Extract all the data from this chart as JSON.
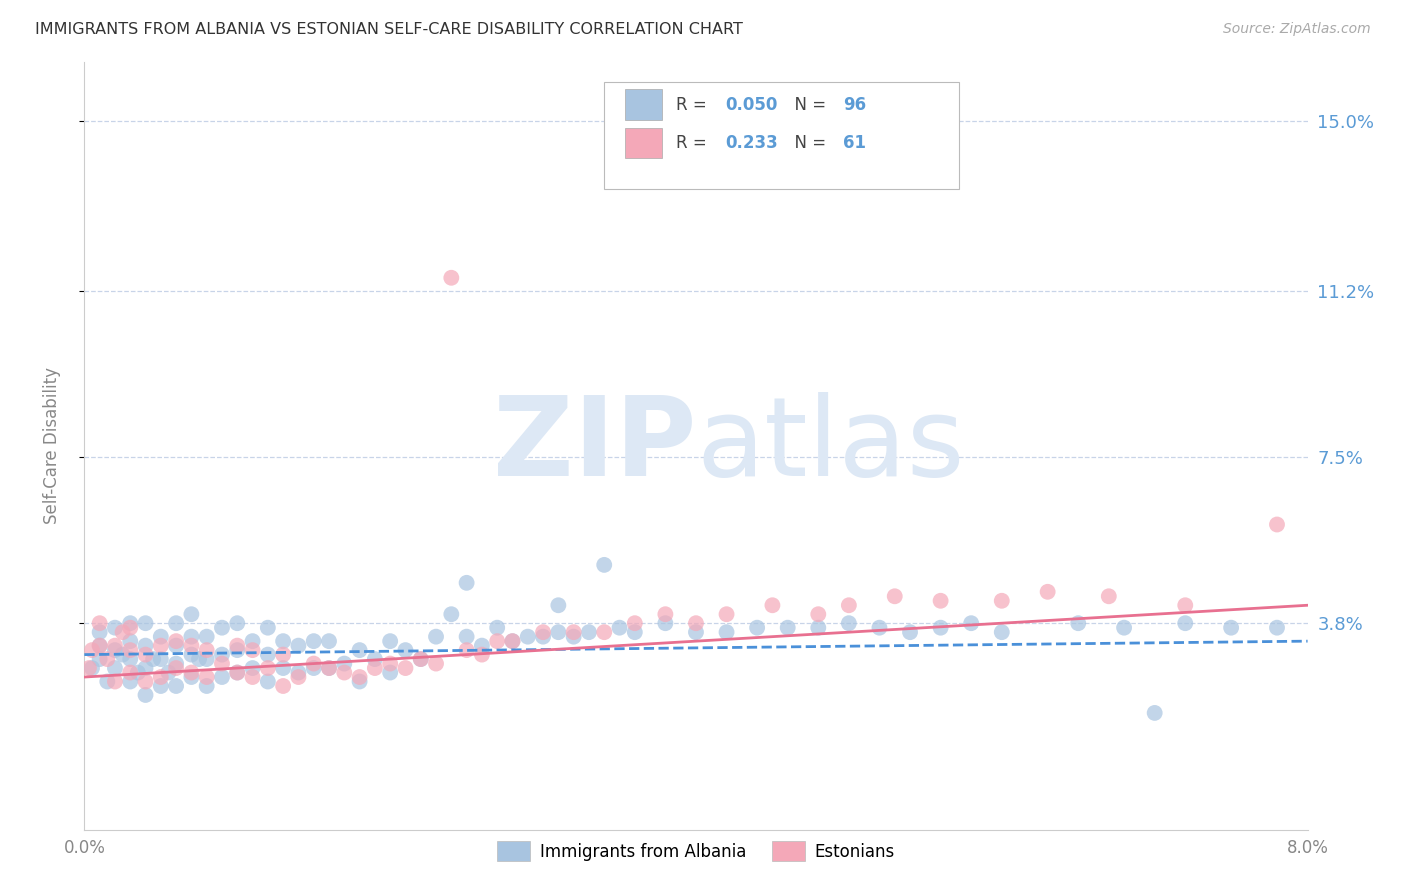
{
  "title": "IMMIGRANTS FROM ALBANIA VS ESTONIAN SELF-CARE DISABILITY CORRELATION CHART",
  "source": "Source: ZipAtlas.com",
  "ylabel": "Self-Care Disability",
  "y_tick_labels": [
    "3.8%",
    "7.5%",
    "11.2%",
    "15.0%"
  ],
  "y_tick_values": [
    0.038,
    0.075,
    0.112,
    0.15
  ],
  "xlim": [
    0.0,
    0.08
  ],
  "ylim": [
    -0.008,
    0.163
  ],
  "legend1_label": "Immigrants from Albania",
  "legend2_label": "Estonians",
  "scatter1_color": "#a8c4e0",
  "scatter2_color": "#f4a8b8",
  "line1_color": "#4a90d9",
  "line2_color": "#e87090",
  "watermark": "ZIPatlas",
  "R1": 0.05,
  "N1": 96,
  "R2": 0.233,
  "N2": 61,
  "scatter1_x": [
    0.0005,
    0.001,
    0.001,
    0.001,
    0.0015,
    0.002,
    0.002,
    0.002,
    0.0025,
    0.003,
    0.003,
    0.003,
    0.003,
    0.0035,
    0.004,
    0.004,
    0.004,
    0.004,
    0.0045,
    0.005,
    0.005,
    0.005,
    0.0055,
    0.006,
    0.006,
    0.006,
    0.006,
    0.007,
    0.007,
    0.007,
    0.007,
    0.0075,
    0.008,
    0.008,
    0.008,
    0.009,
    0.009,
    0.009,
    0.01,
    0.01,
    0.01,
    0.011,
    0.011,
    0.012,
    0.012,
    0.012,
    0.013,
    0.013,
    0.014,
    0.014,
    0.015,
    0.015,
    0.016,
    0.016,
    0.017,
    0.018,
    0.018,
    0.019,
    0.02,
    0.02,
    0.021,
    0.022,
    0.023,
    0.024,
    0.025,
    0.025,
    0.026,
    0.027,
    0.028,
    0.029,
    0.03,
    0.031,
    0.031,
    0.032,
    0.033,
    0.034,
    0.035,
    0.036,
    0.038,
    0.04,
    0.042,
    0.044,
    0.046,
    0.048,
    0.05,
    0.052,
    0.054,
    0.056,
    0.058,
    0.06,
    0.065,
    0.068,
    0.07,
    0.072,
    0.075,
    0.078
  ],
  "scatter1_y": [
    0.028,
    0.03,
    0.033,
    0.036,
    0.025,
    0.028,
    0.032,
    0.037,
    0.031,
    0.025,
    0.03,
    0.034,
    0.038,
    0.027,
    0.022,
    0.028,
    0.033,
    0.038,
    0.03,
    0.024,
    0.03,
    0.035,
    0.027,
    0.024,
    0.029,
    0.033,
    0.038,
    0.026,
    0.031,
    0.035,
    0.04,
    0.03,
    0.024,
    0.03,
    0.035,
    0.026,
    0.031,
    0.037,
    0.027,
    0.032,
    0.038,
    0.028,
    0.034,
    0.025,
    0.031,
    0.037,
    0.028,
    0.034,
    0.027,
    0.033,
    0.028,
    0.034,
    0.028,
    0.034,
    0.029,
    0.025,
    0.032,
    0.03,
    0.027,
    0.034,
    0.032,
    0.03,
    0.035,
    0.04,
    0.047,
    0.035,
    0.033,
    0.037,
    0.034,
    0.035,
    0.035,
    0.036,
    0.042,
    0.035,
    0.036,
    0.051,
    0.037,
    0.036,
    0.038,
    0.036,
    0.036,
    0.037,
    0.037,
    0.037,
    0.038,
    0.037,
    0.036,
    0.037,
    0.038,
    0.036,
    0.038,
    0.037,
    0.018,
    0.038,
    0.037,
    0.037
  ],
  "scatter2_x": [
    0.0003,
    0.0005,
    0.001,
    0.001,
    0.0015,
    0.002,
    0.002,
    0.0025,
    0.003,
    0.003,
    0.003,
    0.004,
    0.004,
    0.005,
    0.005,
    0.006,
    0.006,
    0.007,
    0.007,
    0.008,
    0.008,
    0.009,
    0.01,
    0.01,
    0.011,
    0.011,
    0.012,
    0.013,
    0.013,
    0.014,
    0.015,
    0.016,
    0.017,
    0.018,
    0.019,
    0.02,
    0.021,
    0.022,
    0.023,
    0.024,
    0.025,
    0.026,
    0.027,
    0.028,
    0.03,
    0.032,
    0.034,
    0.036,
    0.038,
    0.04,
    0.042,
    0.045,
    0.048,
    0.05,
    0.053,
    0.056,
    0.06,
    0.063,
    0.067,
    0.072,
    0.078
  ],
  "scatter2_y": [
    0.028,
    0.032,
    0.033,
    0.038,
    0.03,
    0.025,
    0.033,
    0.036,
    0.027,
    0.032,
    0.037,
    0.025,
    0.031,
    0.026,
    0.033,
    0.028,
    0.034,
    0.027,
    0.033,
    0.026,
    0.032,
    0.029,
    0.027,
    0.033,
    0.026,
    0.032,
    0.028,
    0.024,
    0.031,
    0.026,
    0.029,
    0.028,
    0.027,
    0.026,
    0.028,
    0.029,
    0.028,
    0.03,
    0.029,
    0.115,
    0.032,
    0.031,
    0.034,
    0.034,
    0.036,
    0.036,
    0.036,
    0.038,
    0.04,
    0.038,
    0.04,
    0.042,
    0.04,
    0.042,
    0.044,
    0.043,
    0.043,
    0.045,
    0.044,
    0.042,
    0.06
  ],
  "background_color": "#ffffff",
  "grid_color": "#c8d4e8",
  "title_color": "#333333",
  "right_axis_color": "#5b9bd5",
  "tick_label_color": "#888888"
}
